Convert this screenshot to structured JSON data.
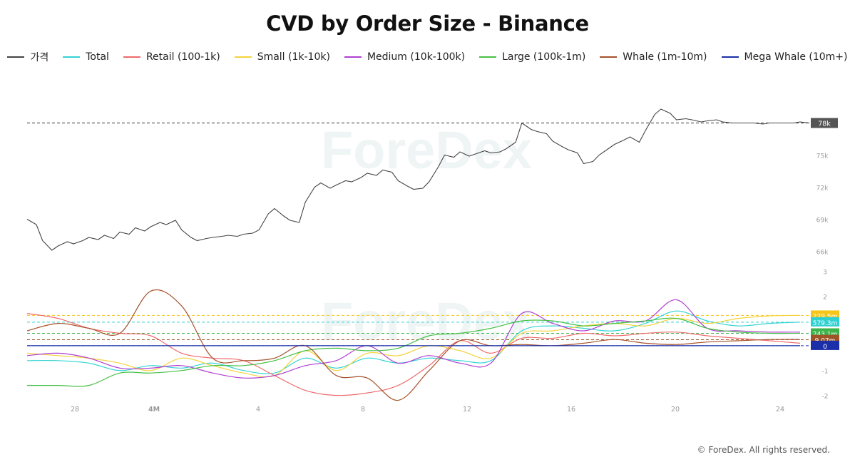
{
  "title": "CVD by Order Size - Binance",
  "footer": "© ForeDex. All rights reserved.",
  "watermark": "ForeDex",
  "chart_data": [
    {
      "type": "line",
      "title": "",
      "series": [
        {
          "name": "가격",
          "color": "#444444",
          "x": [
            0,
            0.3,
            0.5,
            0.8,
            1,
            1.3,
            1.5,
            1.8,
            2,
            2.3,
            2.5,
            2.8,
            3,
            3.3,
            3.5,
            3.8,
            4,
            4.3,
            4.5,
            4.8,
            5,
            5.3,
            5.5,
            5.8,
            6,
            6.3,
            6.5,
            6.8,
            7,
            7.3,
            7.5,
            7.8,
            8,
            8.3,
            8.5,
            8.8,
            9,
            9.3,
            9.5,
            9.8,
            10,
            10.3,
            10.5,
            10.8,
            11,
            11.3,
            11.5,
            11.8,
            12,
            12.3,
            12.5,
            12.8,
            13,
            13.3,
            13.5,
            13.8,
            14,
            14.3,
            14.5,
            14.8,
            15,
            15.3,
            15.5,
            15.8,
            16,
            16.3,
            16.5,
            16.8,
            17,
            17.3,
            17.5,
            17.8,
            18,
            18.3,
            18.5,
            18.8,
            19,
            19.3,
            19.5,
            19.8,
            20,
            20.3,
            20.5,
            20.8,
            21,
            21.3,
            21.5,
            21.8,
            22,
            22.3,
            22.5,
            22.8,
            23,
            23.3,
            23.5,
            23.8,
            24,
            24.3,
            24.5,
            24.8,
            25,
            25.3
          ],
          "values": [
            69.0,
            68.5,
            67.0,
            66.1,
            66.5,
            66.9,
            66.7,
            67.0,
            67.3,
            67.1,
            67.5,
            67.2,
            67.8,
            67.6,
            68.2,
            67.9,
            68.3,
            68.7,
            68.5,
            68.9,
            68.0,
            67.3,
            67.0,
            67.2,
            67.3,
            67.4,
            67.5,
            67.4,
            67.6,
            67.7,
            68.0,
            69.5,
            70.0,
            69.3,
            68.9,
            68.7,
            70.6,
            72.0,
            72.4,
            71.9,
            72.2,
            72.6,
            72.5,
            72.9,
            73.3,
            73.1,
            73.6,
            73.4,
            72.6,
            72.1,
            71.8,
            71.9,
            72.5,
            73.9,
            75.0,
            74.8,
            75.3,
            74.9,
            75.1,
            75.4,
            75.2,
            75.3,
            75.6,
            76.2,
            78.0,
            77.4,
            77.2,
            77.0,
            76.3,
            75.8,
            75.5,
            75.2,
            74.2,
            74.4,
            75.0,
            75.6,
            76.0,
            76.4,
            76.7,
            76.2,
            77.3,
            78.8,
            79.3,
            78.9,
            78.3,
            78.4,
            78.3,
            78.1,
            78.2,
            78.3,
            78.1,
            78.0,
            78.0,
            78.0,
            78.0,
            77.9,
            78.0,
            78.0,
            78.0,
            78.0,
            78.1,
            78.0
          ]
        }
      ],
      "y_ticks": [
        "66k",
        "69k",
        "72k",
        "75k",
        "78k"
      ],
      "last_value_label": "78k",
      "ylim": [
        65.5,
        79.5
      ],
      "grid": false
    },
    {
      "type": "line",
      "title": "",
      "x_ticks": [
        "28",
        "4M",
        "4",
        "8",
        "12",
        "16",
        "20",
        "24"
      ],
      "y_ticks": [
        "-2",
        "-1",
        "0",
        "1",
        "2",
        "3"
      ],
      "ylim": [
        -2.3,
        3.3
      ],
      "grid": false,
      "series": [
        {
          "name": "Total",
          "color": "#34d3d3",
          "x": [
            0,
            1,
            2,
            3,
            4,
            5,
            6,
            7,
            8,
            9,
            10,
            11,
            12,
            13,
            14,
            15,
            16,
            17,
            18,
            19,
            20,
            21,
            22,
            23,
            24,
            25
          ],
          "values": [
            -0.6,
            -0.6,
            -0.7,
            -1.0,
            -0.8,
            -0.9,
            -0.7,
            -1.0,
            -1.1,
            -0.5,
            -0.9,
            -0.5,
            -0.7,
            -0.5,
            -0.6,
            -0.6,
            0.6,
            0.8,
            0.7,
            0.6,
            0.9,
            1.4,
            1.0,
            0.8,
            0.9,
            0.95
          ]
        },
        {
          "name": "Retail (100-1k)",
          "color": "#ef6b6b",
          "x": [
            0,
            1,
            2,
            3,
            4,
            5,
            6,
            7,
            8,
            9,
            10,
            11,
            12,
            13,
            14,
            15,
            16,
            17,
            18,
            19,
            20,
            21,
            22,
            23,
            24,
            25
          ],
          "values": [
            1.3,
            1.1,
            0.7,
            0.5,
            0.4,
            -0.3,
            -0.5,
            -0.6,
            -1.2,
            -1.8,
            -2.0,
            -1.9,
            -1.6,
            -0.8,
            0.2,
            -0.3,
            0.3,
            0.3,
            0.5,
            0.4,
            0.5,
            0.55,
            0.4,
            0.3,
            0.2,
            0.1
          ]
        },
        {
          "name": "Small (1k-10k)",
          "color": "#f5d33a",
          "x": [
            0,
            1,
            2,
            3,
            4,
            5,
            6,
            7,
            8,
            9,
            10,
            11,
            12,
            13,
            14,
            15,
            16,
            17,
            18,
            19,
            20,
            21,
            22,
            23,
            24,
            25
          ],
          "values": [
            -0.3,
            -0.4,
            -0.5,
            -0.7,
            -1.0,
            -0.5,
            -0.8,
            -1.1,
            -1.2,
            -0.2,
            -1.0,
            -0.3,
            -0.4,
            0.0,
            -0.2,
            -0.5,
            0.5,
            0.6,
            0.8,
            0.9,
            0.8,
            1.1,
            0.9,
            1.1,
            1.2,
            1.22
          ]
        },
        {
          "name": "Medium (10k-100k)",
          "color": "#b03fd1",
          "x": [
            0,
            1,
            2,
            3,
            4,
            5,
            6,
            7,
            8,
            9,
            10,
            11,
            12,
            13,
            14,
            15,
            16,
            17,
            18,
            19,
            20,
            21,
            22,
            23,
            24,
            25
          ],
          "values": [
            -0.4,
            -0.3,
            -0.5,
            -0.9,
            -0.9,
            -0.8,
            -1.1,
            -1.3,
            -1.2,
            -0.8,
            -0.6,
            0.0,
            -0.7,
            -0.4,
            -0.7,
            -0.7,
            1.3,
            0.9,
            0.6,
            1.0,
            1.0,
            1.85,
            0.7,
            0.6,
            0.55,
            0.55
          ]
        },
        {
          "name": "Large (100k-1m)",
          "color": "#46c046",
          "x": [
            0,
            1,
            2,
            3,
            4,
            5,
            6,
            7,
            8,
            9,
            10,
            11,
            12,
            13,
            14,
            15,
            16,
            17,
            18,
            19,
            20,
            21,
            22,
            23,
            24,
            25
          ],
          "values": [
            -1.6,
            -1.6,
            -1.6,
            -1.1,
            -1.1,
            -1.0,
            -0.8,
            -0.8,
            -0.6,
            -0.2,
            -0.1,
            -0.2,
            -0.1,
            0.4,
            0.5,
            0.7,
            1.0,
            1.0,
            0.8,
            0.9,
            1.0,
            1.1,
            0.7,
            0.55,
            0.5,
            0.5
          ]
        },
        {
          "name": "Whale (1m-10m)",
          "color": "#a5512a",
          "x": [
            0,
            1,
            2,
            3,
            4,
            5,
            6,
            7,
            8,
            9,
            10,
            11,
            12,
            13,
            14,
            15,
            16,
            17,
            18,
            19,
            20,
            21,
            22,
            23,
            24,
            25
          ],
          "values": [
            0.6,
            0.9,
            0.7,
            0.5,
            2.2,
            1.6,
            -0.5,
            -0.6,
            -0.5,
            0.0,
            -1.2,
            -1.3,
            -2.2,
            -1.0,
            0.2,
            0.0,
            0.05,
            0.0,
            0.1,
            0.25,
            0.1,
            0.05,
            0.15,
            0.2,
            0.25,
            0.25
          ]
        },
        {
          "name": "Mega Whale (10m+)",
          "color": "#1a2fa8",
          "x": [
            0,
            1,
            2,
            3,
            4,
            5,
            6,
            7,
            8,
            9,
            10,
            11,
            12,
            13,
            14,
            15,
            16,
            17,
            18,
            19,
            20,
            21,
            22,
            23,
            24,
            25
          ],
          "values": [
            0.0,
            0.0,
            0.0,
            0.0,
            0.0,
            0.0,
            0.0,
            0.0,
            0.0,
            0.0,
            0.0,
            0.0,
            0.0,
            0.0,
            0.0,
            0.0,
            0.0,
            0.0,
            0.0,
            0.0,
            0.0,
            0.0,
            0.0,
            0.0,
            0.0,
            0.0
          ]
        }
      ],
      "value_labels": [
        {
          "text": "229.5m",
          "color": "#f5c518",
          "value": 1.22
        },
        {
          "text": "579.3m",
          "color": "#2fd0d0",
          "value": 0.95
        },
        {
          "text": "243.1m",
          "color": "#3cb44b",
          "value": 0.5
        },
        {
          "text": "9.07m",
          "color": "#9c5428",
          "value": 0.24
        },
        {
          "text": "0",
          "color": "#1a2fa8",
          "value": 0.0
        }
      ]
    }
  ]
}
